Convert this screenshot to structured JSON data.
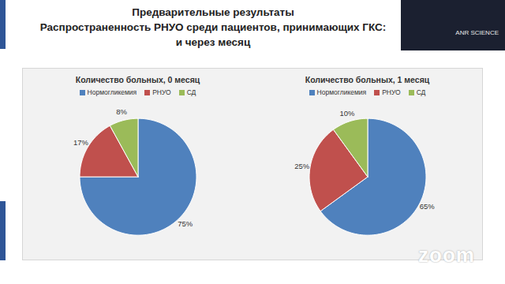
{
  "slide": {
    "title": [
      "Предварительные результаты",
      "Распространенность РНУО среди пациентов, принимающих ГКС:",
      "и через месяц"
    ],
    "overlay": "ANR SCIENCE",
    "watermark": "zoom"
  },
  "chart_data": [
    {
      "type": "pie",
      "title": "Количество больных, 0 месяц",
      "categories": [
        "Нормогликемия",
        "РНУО",
        "СД"
      ],
      "values": [
        75,
        17,
        8
      ],
      "value_labels": [
        "75%",
        "17%",
        "8%"
      ],
      "colors": [
        "#4f81bd",
        "#c0504d",
        "#9bbb59"
      ],
      "legend": "top",
      "data_labels": true
    },
    {
      "type": "pie",
      "title": "Количество больных, 1 месяц",
      "categories": [
        "Нормогликемия",
        "РНУО",
        "СД"
      ],
      "values": [
        65,
        25,
        10
      ],
      "value_labels": [
        "65%",
        "25%",
        "10%"
      ],
      "colors": [
        "#4f81bd",
        "#c0504d",
        "#9bbb59"
      ],
      "legend": "top",
      "data_labels": true
    }
  ]
}
